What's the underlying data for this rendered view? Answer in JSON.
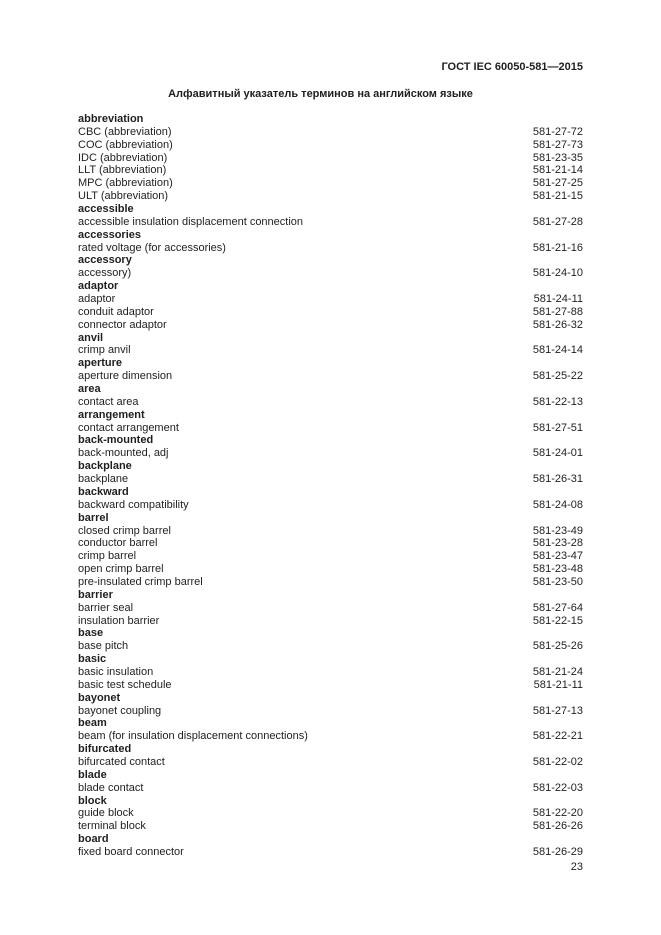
{
  "header": {
    "doc_code": "ГОСТ IEC 60050-581—2015"
  },
  "title": "Алфавитный указатель терминов на английском языке",
  "footer": {
    "page_number": "23"
  },
  "index": {
    "groups": [
      {
        "heading": "abbreviation",
        "entries": [
          {
            "term": "CBC (abbreviation)",
            "ref": "581-27-72"
          },
          {
            "term": "COC (abbreviation)",
            "ref": "581-27-73"
          },
          {
            "term": "IDC (abbreviation)",
            "ref": "581-23-35"
          },
          {
            "term": "LLT (abbreviation)",
            "ref": "581-21-14"
          },
          {
            "term": "MPC (abbreviation)",
            "ref": "581-27-25"
          },
          {
            "term": "ULT (abbreviation)",
            "ref": "581-21-15"
          }
        ]
      },
      {
        "heading": "accessible",
        "entries": [
          {
            "term": "accessible insulation displacement connection",
            "ref": "581-27-28"
          }
        ]
      },
      {
        "heading": "accessories",
        "entries": [
          {
            "term": "rated voltage (for accessories)",
            "ref": "581-21-16"
          }
        ]
      },
      {
        "heading": "accessory",
        "entries": [
          {
            "term": "accessory)",
            "ref": "581-24-10"
          }
        ]
      },
      {
        "heading": "adaptor",
        "entries": [
          {
            "term": "adaptor",
            "ref": "581-24-11"
          },
          {
            "term": "conduit adaptor",
            "ref": "581-27-88"
          },
          {
            "term": "connector adaptor",
            "ref": "581-26-32"
          }
        ]
      },
      {
        "heading": "anvil",
        "entries": [
          {
            "term": "crimp anvil",
            "ref": "581-24-14"
          }
        ]
      },
      {
        "heading": "aperture",
        "entries": [
          {
            "term": "aperture dimension",
            "ref": "581-25-22"
          }
        ]
      },
      {
        "heading": "area",
        "entries": [
          {
            "term": "contact area",
            "ref": "581-22-13"
          }
        ]
      },
      {
        "heading": "arrangement",
        "entries": [
          {
            "term": "contact arrangement",
            "ref": "581-27-51"
          }
        ]
      },
      {
        "heading": "back-mounted",
        "entries": [
          {
            "term": "back-mounted, adj",
            "ref": "581-24-01"
          }
        ]
      },
      {
        "heading": "backplane",
        "entries": [
          {
            "term": "backplane",
            "ref": "581-26-31"
          }
        ]
      },
      {
        "heading": "backward",
        "entries": [
          {
            "term": "backward compatibility",
            "ref": "581-24-08"
          }
        ]
      },
      {
        "heading": "barrel",
        "entries": [
          {
            "term": "closed crimp barrel",
            "ref": "581-23-49"
          },
          {
            "term": "conductor barrel",
            "ref": "581-23-28"
          },
          {
            "term": "crimp barrel",
            "ref": "581-23-47"
          },
          {
            "term": "open crimp barrel",
            "ref": "581-23-48"
          },
          {
            "term": "pre-insulated crimp barrel",
            "ref": "581-23-50"
          }
        ]
      },
      {
        "heading": "barrier",
        "entries": [
          {
            "term": "barrier seal",
            "ref": "581-27-64"
          },
          {
            "term": "insulation barrier",
            "ref": "581-22-15"
          }
        ]
      },
      {
        "heading": "base",
        "entries": [
          {
            "term": "base pitch",
            "ref": "581-25-26"
          }
        ]
      },
      {
        "heading": "basic",
        "entries": [
          {
            "term": "basic insulation",
            "ref": "581-21-24"
          },
          {
            "term": "basic test schedule",
            "ref": "581-21-11"
          }
        ]
      },
      {
        "heading": "bayonet",
        "entries": [
          {
            "term": "bayonet coupling",
            "ref": "581-27-13"
          }
        ]
      },
      {
        "heading": "beam",
        "entries": [
          {
            "term": "beam (for insulation displacement connections)",
            "ref": "581-22-21"
          }
        ]
      },
      {
        "heading": "bifurcated",
        "entries": [
          {
            "term": "bifurcated contact",
            "ref": "581-22-02"
          }
        ]
      },
      {
        "heading": "blade",
        "entries": [
          {
            "term": "blade contact",
            "ref": "581-22-03"
          }
        ]
      },
      {
        "heading": "block",
        "entries": [
          {
            "term": "guide block",
            "ref": "581-22-20"
          },
          {
            "term": "terminal block",
            "ref": "581-26-26"
          }
        ]
      },
      {
        "heading": "board",
        "entries": [
          {
            "term": "fixed board connector",
            "ref": "581-26-29"
          }
        ]
      }
    ]
  }
}
